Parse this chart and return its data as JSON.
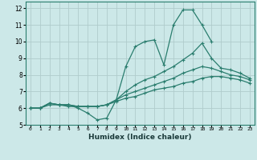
{
  "xlabel": "Humidex (Indice chaleur)",
  "ylabel": "",
  "xlim": [
    -0.5,
    23.5
  ],
  "ylim": [
    5,
    12.4
  ],
  "yticks": [
    5,
    6,
    7,
    8,
    9,
    10,
    11,
    12
  ],
  "xticks": [
    0,
    1,
    2,
    3,
    4,
    5,
    6,
    7,
    8,
    9,
    10,
    11,
    12,
    13,
    14,
    15,
    16,
    17,
    18,
    19,
    20,
    21,
    22,
    23
  ],
  "bg_color": "#cce8e8",
  "line_color": "#2a7d6e",
  "grid_color": "#b0cccc",
  "lines": [
    {
      "x": [
        0,
        1,
        2,
        3,
        4,
        5,
        6,
        7,
        8,
        9,
        10,
        11,
        12,
        13,
        14,
        15,
        16,
        17,
        18,
        19,
        20
      ],
      "y": [
        6.0,
        6.0,
        6.3,
        6.2,
        6.2,
        6.0,
        5.7,
        5.3,
        5.4,
        6.5,
        8.5,
        9.7,
        10.0,
        10.1,
        8.6,
        11.0,
        11.9,
        11.9,
        11.0,
        10.0,
        null
      ]
    },
    {
      "x": [
        0,
        1,
        2,
        3,
        4,
        5,
        6,
        7,
        8,
        9,
        10,
        11,
        12,
        13,
        14,
        15,
        16,
        17,
        18,
        19,
        20,
        21,
        22,
        23
      ],
      "y": [
        6.0,
        6.0,
        6.3,
        6.2,
        6.2,
        6.1,
        6.1,
        6.1,
        6.2,
        6.5,
        7.0,
        7.4,
        7.7,
        7.9,
        8.2,
        8.5,
        8.9,
        9.3,
        9.9,
        9.0,
        8.4,
        8.3,
        8.1,
        7.8
      ]
    },
    {
      "x": [
        0,
        1,
        2,
        3,
        4,
        5,
        6,
        7,
        8,
        9,
        10,
        11,
        12,
        13,
        14,
        15,
        16,
        17,
        18,
        19,
        20,
        21,
        22,
        23
      ],
      "y": [
        6.0,
        6.0,
        6.3,
        6.2,
        6.2,
        6.1,
        6.1,
        6.1,
        6.2,
        6.5,
        6.8,
        7.0,
        7.2,
        7.4,
        7.6,
        7.8,
        8.1,
        8.3,
        8.5,
        8.4,
        8.2,
        8.0,
        7.9,
        7.7
      ]
    },
    {
      "x": [
        0,
        1,
        2,
        3,
        4,
        5,
        6,
        7,
        8,
        9,
        10,
        11,
        12,
        13,
        14,
        15,
        16,
        17,
        18,
        19,
        20,
        21,
        22,
        23
      ],
      "y": [
        6.0,
        6.0,
        6.2,
        6.2,
        6.1,
        6.1,
        6.1,
        6.1,
        6.2,
        6.4,
        6.6,
        6.7,
        6.9,
        7.1,
        7.2,
        7.3,
        7.5,
        7.6,
        7.8,
        7.9,
        7.9,
        7.8,
        7.7,
        7.5
      ]
    }
  ]
}
